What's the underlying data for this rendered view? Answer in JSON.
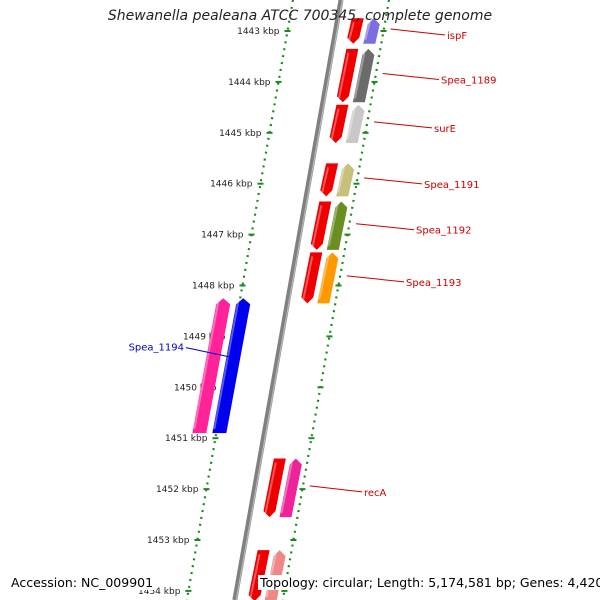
{
  "title": "Shewanella pealeana ATCC 700345, complete genome",
  "footer": {
    "accession": "Accession: NC_009901",
    "summary": "Topology: circular; Length: 5,174,581 bp; Genes: 4,420"
  },
  "colors": {
    "backbone": "#808080",
    "ruler": "#1a8a1a",
    "label_forward": "#cc0000",
    "label_reverse": "#0000cc"
  },
  "ticks": [
    {
      "label": "1443 kbp"
    },
    {
      "label": "1444 kbp"
    },
    {
      "label": "1445 kbp"
    },
    {
      "label": "1446 kbp"
    },
    {
      "label": "1447 kbp"
    },
    {
      "label": "1448 kbp"
    },
    {
      "label": "1449 kbp"
    },
    {
      "label": "1450 kbp"
    },
    {
      "label": "1451 kbp"
    },
    {
      "label": "1452 kbp"
    },
    {
      "label": "1453 kbp"
    },
    {
      "label": "1454 kbp"
    }
  ],
  "genes": [
    {
      "name": "ispF",
      "start_kbp": 1442.75,
      "end_kbp": 1443.25,
      "strand": "+",
      "color": "#7a6ee0",
      "labeled": true
    },
    {
      "name": "Spea_1189",
      "start_kbp": 1443.35,
      "end_kbp": 1444.4,
      "strand": "+",
      "color": "#6b6b6b",
      "labeled": true
    },
    {
      "name": "surE",
      "start_kbp": 1444.45,
      "end_kbp": 1445.2,
      "strand": "+",
      "color": "#c8c8c8",
      "labeled": true
    },
    {
      "name": "Spea_1191",
      "start_kbp": 1445.6,
      "end_kbp": 1446.25,
      "strand": "+",
      "color": "#c6c07a",
      "labeled": true
    },
    {
      "name": "Spea_1192",
      "start_kbp": 1446.35,
      "end_kbp": 1447.3,
      "strand": "+",
      "color": "#6b8e23",
      "labeled": true
    },
    {
      "name": "Spea_1193",
      "start_kbp": 1447.35,
      "end_kbp": 1448.35,
      "strand": "+",
      "color": "#ff9900",
      "labeled": true
    },
    {
      "name": "Spea_1194",
      "start_kbp": 1448.25,
      "end_kbp": 1450.9,
      "strand": "-",
      "color": "#0000ee",
      "labeled": true
    },
    {
      "name": "recA",
      "start_kbp": 1451.4,
      "end_kbp": 1452.55,
      "strand": "+",
      "color": "#ee2299",
      "labeled": true
    },
    {
      "name": "",
      "start_kbp": 1453.2,
      "end_kbp": 1454.2,
      "strand": "+",
      "color": "#ee8888",
      "labeled": false
    }
  ]
}
